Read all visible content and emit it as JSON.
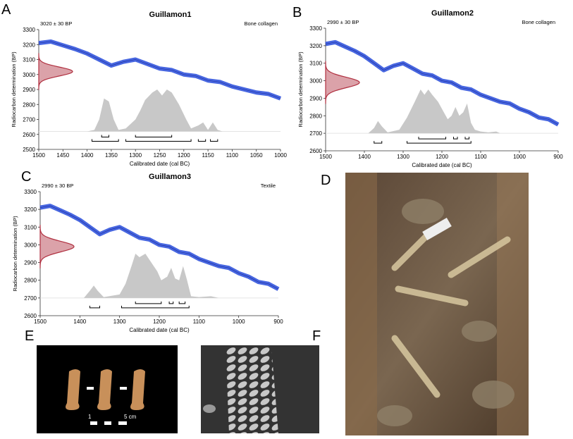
{
  "panel_labels": [
    "A",
    "B",
    "C",
    "D",
    "E",
    "F"
  ],
  "scale_bar": {
    "start": "1",
    "end": "5 cm"
  },
  "chart_data": [
    {
      "type": "calibration",
      "title": "Guillamon1",
      "date_label": "3020 ± 30 BP",
      "sample": "Bone collagen",
      "xlabel": "Calibrated date (cal BC)",
      "ylabel": "Radiocarbon determination (BP)",
      "xlim": [
        1500,
        1000
      ],
      "xticks": [
        1500,
        1450,
        1400,
        1350,
        1300,
        1250,
        1200,
        1150,
        1100,
        1050,
        1000
      ],
      "ylim": [
        2500,
        3300
      ],
      "yticks": [
        2500,
        2600,
        2700,
        2800,
        2900,
        3000,
        3100,
        3200,
        3300
      ],
      "determination": {
        "value": 3020,
        "error": 30,
        "color": "#b03040"
      },
      "curve": {
        "color": "#3355dd",
        "x": [
          1500,
          1475,
          1450,
          1425,
          1400,
          1375,
          1350,
          1325,
          1300,
          1275,
          1250,
          1225,
          1200,
          1175,
          1150,
          1125,
          1100,
          1075,
          1050,
          1025,
          1000
        ],
        "y": [
          3210,
          3220,
          3195,
          3170,
          3140,
          3100,
          3060,
          3085,
          3100,
          3070,
          3040,
          3030,
          3000,
          2990,
          2960,
          2950,
          2920,
          2900,
          2880,
          2870,
          2840
        ]
      },
      "probability": {
        "color": "#c8c8c8",
        "baseline": 2620,
        "x": [
          1400,
          1385,
          1375,
          1365,
          1355,
          1345,
          1335,
          1320,
          1300,
          1290,
          1280,
          1265,
          1255,
          1245,
          1235,
          1225,
          1210,
          1195,
          1185,
          1170,
          1160,
          1150,
          1140,
          1130,
          1120
        ],
        "values": [
          2620,
          2630,
          2700,
          2840,
          2820,
          2700,
          2630,
          2640,
          2700,
          2760,
          2830,
          2880,
          2900,
          2860,
          2900,
          2880,
          2800,
          2700,
          2640,
          2660,
          2680,
          2630,
          2680,
          2630,
          2620
        ]
      },
      "ranges": {
        "one_sigma": [
          [
            1370,
            1355
          ],
          [
            1300,
            1225
          ]
        ],
        "two_sigma": [
          [
            1390,
            1335
          ],
          [
            1320,
            1185
          ],
          [
            1170,
            1155
          ],
          [
            1145,
            1130
          ]
        ]
      }
    },
    {
      "type": "calibration",
      "title": "Guillamon2",
      "date_label": "2990 ± 30 BP",
      "sample": "Bone collagen",
      "xlabel": "Calibrated date (cal BC)",
      "ylabel": "Radiocarbon determination (BP)",
      "xlim": [
        1500,
        900
      ],
      "xticks": [
        1500,
        1400,
        1300,
        1200,
        1100,
        1000,
        900
      ],
      "ylim": [
        2600,
        3300
      ],
      "yticks": [
        2600,
        2700,
        2800,
        2900,
        3000,
        3100,
        3200,
        3300
      ],
      "determination": {
        "value": 2990,
        "error": 30,
        "color": "#b03040"
      },
      "curve": {
        "color": "#3355dd",
        "x": [
          1500,
          1475,
          1450,
          1425,
          1400,
          1375,
          1350,
          1325,
          1300,
          1275,
          1250,
          1225,
          1200,
          1175,
          1150,
          1125,
          1100,
          1075,
          1050,
          1025,
          1000,
          975,
          950,
          925,
          900
        ],
        "y": [
          3210,
          3220,
          3195,
          3170,
          3140,
          3100,
          3060,
          3085,
          3100,
          3070,
          3040,
          3030,
          3000,
          2990,
          2960,
          2950,
          2920,
          2900,
          2880,
          2870,
          2840,
          2820,
          2790,
          2780,
          2750
        ]
      },
      "probability": {
        "color": "#c8c8c8",
        "baseline": 2700,
        "x": [
          1390,
          1375,
          1365,
          1355,
          1340,
          1310,
          1290,
          1270,
          1255,
          1245,
          1235,
          1225,
          1210,
          1195,
          1185,
          1175,
          1165,
          1155,
          1145,
          1135,
          1125,
          1115,
          1100,
          1080,
          1060,
          1050
        ],
        "values": [
          2700,
          2730,
          2770,
          2740,
          2705,
          2720,
          2790,
          2880,
          2950,
          2920,
          2950,
          2920,
          2880,
          2820,
          2780,
          2800,
          2850,
          2800,
          2820,
          2870,
          2760,
          2720,
          2710,
          2705,
          2710,
          2700
        ]
      },
      "ranges": {
        "one_sigma": [
          [
            1260,
            1190
          ],
          [
            1170,
            1160
          ],
          [
            1140,
            1130
          ]
        ],
        "two_sigma": [
          [
            1375,
            1355
          ],
          [
            1290,
            1125
          ]
        ]
      }
    },
    {
      "type": "calibration",
      "title": "Guillamon3",
      "date_label": "2990 ± 30 BP",
      "sample": "Textile",
      "xlabel": "Calibrated date (cal BC)",
      "ylabel": "Radiocarbon determination (BP)",
      "xlim": [
        1500,
        900
      ],
      "xticks": [
        1500,
        1400,
        1300,
        1200,
        1100,
        1000,
        900
      ],
      "ylim": [
        2600,
        3300
      ],
      "yticks": [
        2600,
        2700,
        2800,
        2900,
        3000,
        3100,
        3200,
        3300
      ],
      "determination": {
        "value": 2990,
        "error": 30,
        "color": "#b03040"
      },
      "curve": {
        "color": "#3355dd",
        "x": [
          1500,
          1475,
          1450,
          1425,
          1400,
          1375,
          1350,
          1325,
          1300,
          1275,
          1250,
          1225,
          1200,
          1175,
          1150,
          1125,
          1100,
          1075,
          1050,
          1025,
          1000,
          975,
          950,
          925,
          900
        ],
        "y": [
          3210,
          3220,
          3195,
          3170,
          3140,
          3100,
          3060,
          3085,
          3100,
          3070,
          3040,
          3030,
          3000,
          2990,
          2960,
          2950,
          2920,
          2900,
          2880,
          2870,
          2840,
          2820,
          2790,
          2780,
          2750
        ]
      },
      "probability": {
        "color": "#c8c8c8",
        "baseline": 2700,
        "x": [
          1390,
          1375,
          1365,
          1355,
          1340,
          1300,
          1285,
          1270,
          1260,
          1250,
          1235,
          1220,
          1205,
          1195,
          1180,
          1170,
          1160,
          1150,
          1140,
          1130,
          1120,
          1100,
          1070,
          1050
        ],
        "values": [
          2700,
          2740,
          2770,
          2740,
          2705,
          2720,
          2780,
          2880,
          2950,
          2930,
          2950,
          2900,
          2850,
          2800,
          2820,
          2870,
          2810,
          2800,
          2880,
          2800,
          2710,
          2705,
          2710,
          2700
        ]
      },
      "ranges": {
        "one_sigma": [
          [
            1260,
            1195
          ],
          [
            1175,
            1165
          ],
          [
            1150,
            1135
          ]
        ],
        "two_sigma": [
          [
            1375,
            1350
          ],
          [
            1295,
            1125
          ]
        ]
      }
    }
  ]
}
